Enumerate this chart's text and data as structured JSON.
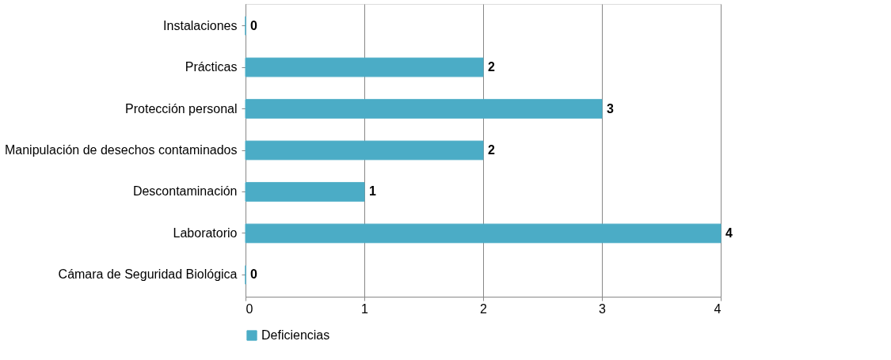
{
  "chart_data": {
    "type": "bar",
    "orientation": "horizontal",
    "categories": [
      "Instalaciones",
      "Prácticas",
      "Protección personal",
      "Manipulación de desechos contaminados",
      "Descontaminación",
      "Laboratorio",
      "Cámara de Seguridad Biológica"
    ],
    "series": [
      {
        "name": "Deficiencias",
        "color": "#4bacc6",
        "values": [
          0,
          2,
          3,
          2,
          1,
          4,
          0
        ]
      }
    ],
    "xlim": [
      0,
      4
    ],
    "xticks": [
      0,
      1,
      2,
      3,
      4
    ],
    "grid": "x",
    "legend": "bottom left",
    "data_labels": true
  }
}
